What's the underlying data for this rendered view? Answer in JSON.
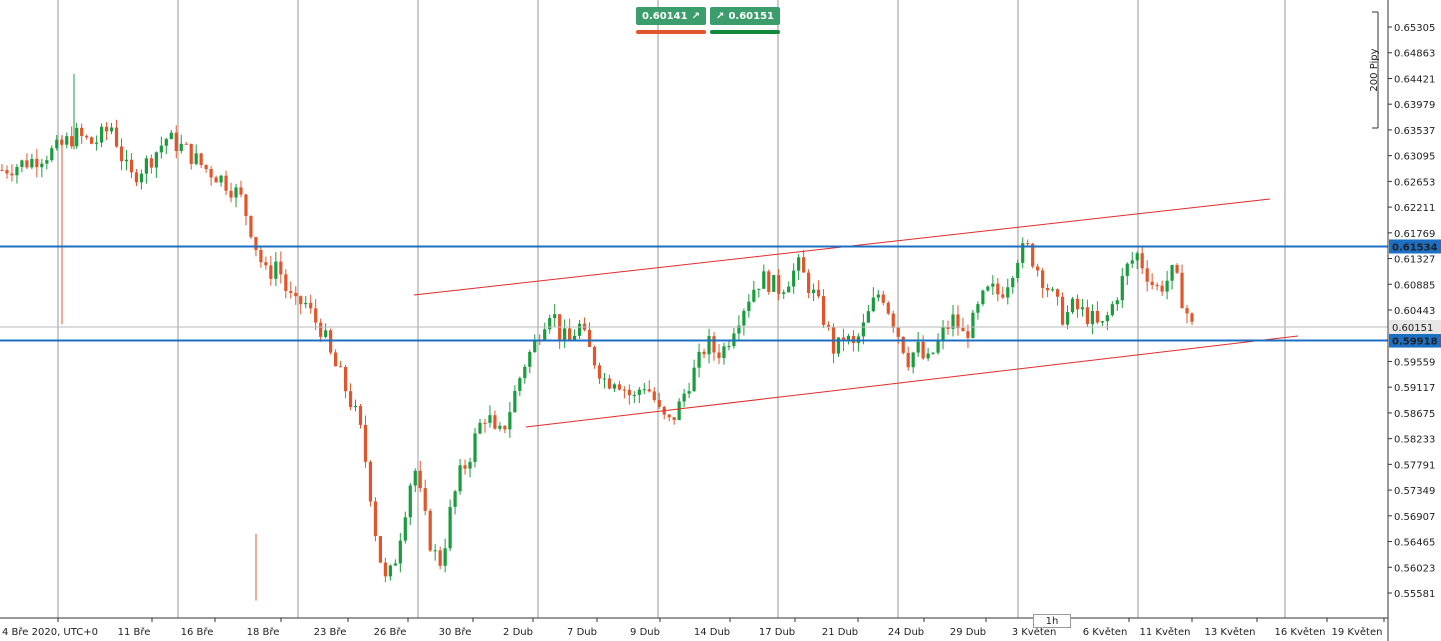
{
  "colors": {
    "bull": "#1a9c3e",
    "bear": "#e2552b",
    "channel": "#e32b2b",
    "level": "#1c6fc2",
    "grid": "#808080",
    "badge": "#3c9d6c"
  },
  "toolbar": {
    "sell_price": "0.60141",
    "buy_price": "0.60151",
    "sell_icon": "arrow-up-right-icon",
    "buy_icon": "arrow-up-right-icon"
  },
  "timeframe": "1h",
  "range_label": "200 Pipy",
  "chart_data": {
    "type": "candlestick",
    "title": "",
    "xlabel": "",
    "ylabel": "",
    "ylim": [
      0.5536,
      0.655
    ],
    "grid": "vertical",
    "x_ticks": [
      "4 Bře 2020, UTC+0",
      "11 Bře",
      "16 Bře",
      "18 Bře",
      "23 Bře",
      "26 Bře",
      "30 Bře",
      "2 Dub",
      "7 Dub",
      "9 Dub",
      "14 Dub",
      "17 Dub",
      "21 Dub",
      "24 Dub",
      "29 Dub",
      "3 Květen",
      "6 Květen",
      "11 Květen",
      "13 Květen",
      "16 Květen",
      "19 Květen"
    ],
    "y_ticks": [
      "0.65305",
      "0.64863",
      "0.64421",
      "0.63979",
      "0.63537",
      "0.63095",
      "0.62653",
      "0.62211",
      "0.61769",
      "0.61327",
      "0.60885",
      "0.60443",
      "0.59559",
      "0.59117",
      "0.58675",
      "0.58233",
      "0.57791",
      "0.57349",
      "0.56907",
      "0.56465",
      "0.56023",
      "0.55581"
    ],
    "current_price": "0.60151",
    "levels": [
      {
        "price": 0.61534,
        "label": "0.61534"
      },
      {
        "price": 0.59918,
        "label": "0.59918"
      }
    ],
    "channel_lines": [
      {
        "from": [
          "26 Bře",
          0.607
        ],
        "to": [
          "16 Květen",
          0.6236
        ]
      },
      {
        "from": [
          "2 Dub",
          0.5845
        ],
        "to": [
          "16 Květen",
          0.6005
        ]
      }
    ],
    "close_path": [
      [
        0,
        0.6285
      ],
      [
        3,
        0.63
      ],
      [
        6,
        0.632
      ],
      [
        8,
        0.6345
      ],
      [
        10,
        0.633
      ],
      [
        12,
        0.636
      ],
      [
        13,
        0.631
      ],
      [
        14,
        0.627
      ],
      [
        16,
        0.63
      ],
      [
        18,
        0.634
      ],
      [
        20,
        0.632
      ],
      [
        22,
        0.629
      ],
      [
        24,
        0.627
      ],
      [
        26,
        0.624
      ],
      [
        27,
        0.6195
      ],
      [
        28,
        0.614
      ],
      [
        29,
        0.61
      ],
      [
        30,
        0.613
      ],
      [
        31,
        0.608
      ],
      [
        32,
        0.605
      ],
      [
        33,
        0.606
      ],
      [
        34,
        0.603
      ],
      [
        35,
        0.601
      ],
      [
        36,
        0.596
      ],
      [
        37,
        0.593
      ],
      [
        38,
        0.589
      ],
      [
        39,
        0.585
      ],
      [
        40,
        0.576
      ],
      [
        41,
        0.564
      ],
      [
        42,
        0.557
      ],
      [
        43,
        0.562
      ],
      [
        44,
        0.57
      ],
      [
        45,
        0.578
      ],
      [
        46,
        0.57
      ],
      [
        47,
        0.563
      ],
      [
        48,
        0.561
      ],
      [
        49,
        0.57
      ],
      [
        50,
        0.576
      ],
      [
        51,
        0.579
      ],
      [
        52,
        0.584
      ],
      [
        53,
        0.587
      ],
      [
        54,
        0.582
      ],
      [
        55,
        0.585
      ],
      [
        56,
        0.59
      ],
      [
        57,
        0.595
      ],
      [
        58,
        0.598
      ],
      [
        59,
        0.602
      ],
      [
        60,
        0.605
      ],
      [
        61,
        0.6
      ],
      [
        62,
        0.599
      ],
      [
        63,
        0.602
      ],
      [
        64,
        0.598
      ],
      [
        65,
        0.595
      ],
      [
        66,
        0.592
      ],
      [
        67,
        0.593
      ],
      [
        68,
        0.591
      ],
      [
        69,
        0.589
      ],
      [
        70,
        0.592
      ],
      [
        71,
        0.59
      ],
      [
        72,
        0.586
      ],
      [
        73,
        0.585
      ],
      [
        74,
        0.588
      ],
      [
        75,
        0.592
      ],
      [
        76,
        0.595
      ],
      [
        77,
        0.599
      ],
      [
        78,
        0.597
      ],
      [
        79,
        0.598
      ],
      [
        80,
        0.602
      ],
      [
        81,
        0.605
      ],
      [
        82,
        0.608
      ],
      [
        83,
        0.61
      ],
      [
        84,
        0.609
      ],
      [
        85,
        0.608
      ],
      [
        86,
        0.61
      ],
      [
        87,
        0.612
      ],
      [
        88,
        0.609
      ],
      [
        89,
        0.606
      ],
      [
        90,
        0.602
      ],
      [
        91,
        0.597
      ],
      [
        92,
        0.6
      ],
      [
        93,
        0.598
      ],
      [
        94,
        0.601
      ],
      [
        95,
        0.605
      ],
      [
        96,
        0.608
      ],
      [
        97,
        0.604
      ],
      [
        98,
        0.6
      ],
      [
        99,
        0.596
      ],
      [
        100,
        0.598
      ],
      [
        101,
        0.595
      ],
      [
        102,
        0.598
      ],
      [
        103,
        0.601
      ],
      [
        104,
        0.603
      ],
      [
        105,
        0.6
      ],
      [
        106,
        0.602
      ],
      [
        107,
        0.606
      ],
      [
        108,
        0.608
      ],
      [
        109,
        0.607
      ],
      [
        110,
        0.61
      ],
      [
        111,
        0.614
      ],
      [
        112,
        0.615
      ],
      [
        113,
        0.612
      ],
      [
        114,
        0.609
      ],
      [
        115,
        0.606
      ],
      [
        116,
        0.603
      ],
      [
        117,
        0.605
      ],
      [
        118,
        0.604
      ],
      [
        119,
        0.603
      ],
      [
        120,
        0.601
      ],
      [
        121,
        0.604
      ],
      [
        122,
        0.608
      ],
      [
        123,
        0.612
      ],
      [
        124,
        0.614
      ],
      [
        125,
        0.611
      ],
      [
        126,
        0.608
      ],
      [
        127,
        0.609
      ],
      [
        128,
        0.611
      ],
      [
        129,
        0.606
      ],
      [
        130,
        0.6015
      ]
    ],
    "candle_count": 240
  }
}
